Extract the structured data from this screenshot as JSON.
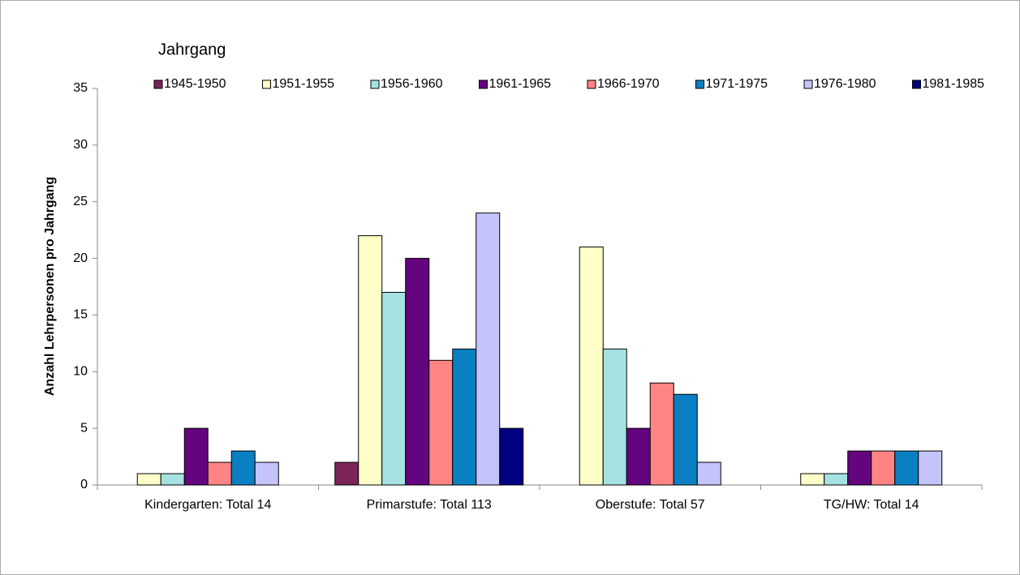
{
  "chart_data": {
    "type": "bar",
    "legend_title": "Jahrgang",
    "y_label": "Anzahl Lehrpersonen pro Jahrgang",
    "categories": [
      "Kindergarten: Total 14",
      "Primarstufe: Total 113",
      "Oberstufe: Total 57",
      "TG/HW: Total 14"
    ],
    "series": [
      {
        "name": "1945-1950",
        "color": "#7b2458",
        "values": [
          0,
          2,
          0,
          0
        ]
      },
      {
        "name": "1951-1955",
        "color": "#ffffc8",
        "values": [
          1,
          22,
          21,
          1
        ]
      },
      {
        "name": "1956-1960",
        "color": "#a6e2e2",
        "values": [
          1,
          17,
          12,
          1
        ]
      },
      {
        "name": "1961-1965",
        "color": "#64047e",
        "values": [
          5,
          20,
          5,
          3
        ]
      },
      {
        "name": "1966-1970",
        "color": "#ff8585",
        "values": [
          2,
          11,
          9,
          3
        ]
      },
      {
        "name": "1971-1975",
        "color": "#0a7fc2",
        "values": [
          3,
          12,
          8,
          3
        ]
      },
      {
        "name": "1976-1980",
        "color": "#c4c4fb",
        "values": [
          2,
          24,
          2,
          3
        ]
      },
      {
        "name": "1981-1985",
        "color": "#000080",
        "values": [
          0,
          5,
          0,
          0
        ]
      }
    ],
    "ylim": [
      0,
      35
    ],
    "yticks": [
      0,
      5,
      10,
      15,
      20,
      25,
      30,
      35
    ]
  }
}
